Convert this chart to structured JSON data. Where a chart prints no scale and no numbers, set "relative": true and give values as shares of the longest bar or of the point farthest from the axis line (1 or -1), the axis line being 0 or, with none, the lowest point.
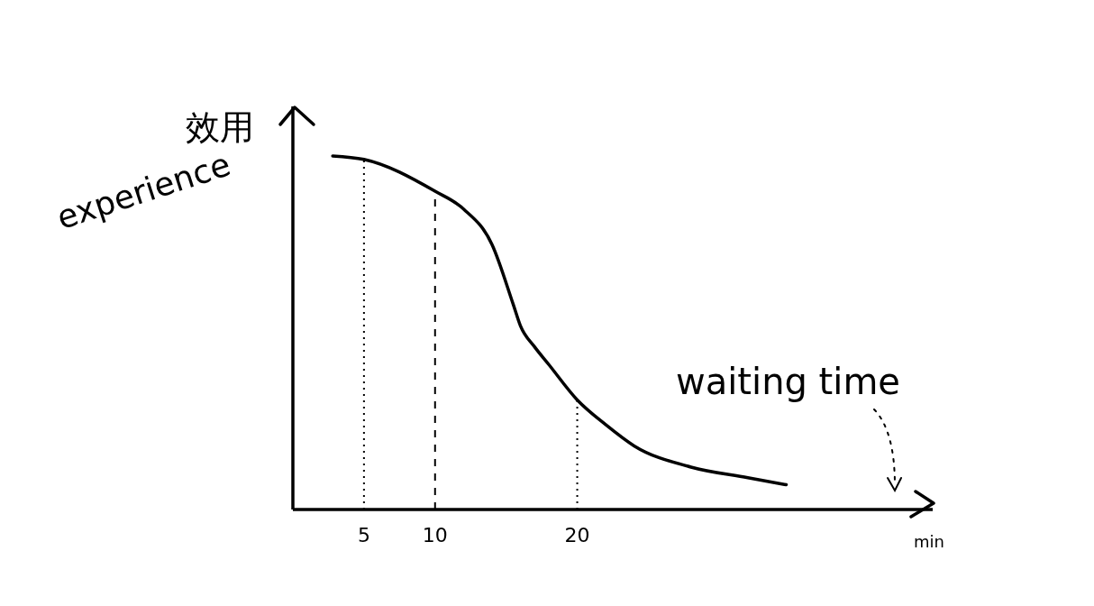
{
  "chart_data": {
    "type": "line",
    "ylabel": "效用",
    "xlabel": "waiting time",
    "annotations": [
      "experience",
      "min"
    ],
    "relative": true,
    "x": [
      2.8,
      5,
      10,
      12,
      14,
      15.5,
      16,
      17,
      18,
      20,
      22,
      24,
      28,
      32,
      34.7
    ],
    "series": [
      {
        "color": "#000000",
        "values": [
          1.0,
          0.99,
          0.9,
          0.85,
          0.75,
          0.58,
          0.52,
          0.46,
          0.41,
          0.31,
          0.24,
          0.18,
          0.12,
          0.09,
          0.07
        ]
      }
    ],
    "xlim": [
      0,
      45
    ],
    "xticks": [
      5,
      10,
      20
    ],
    "marker": "none",
    "line_style": "solid",
    "grid": false,
    "legend": false,
    "ref_lines": [
      {
        "axis": "x",
        "value": 5,
        "color": "#000000",
        "line_style": "dotted"
      },
      {
        "axis": "x",
        "value": 10,
        "color": "#000000",
        "line_style": "dashed"
      },
      {
        "axis": "x",
        "value": 20,
        "color": "#000000",
        "line_style": "dotted"
      }
    ]
  }
}
